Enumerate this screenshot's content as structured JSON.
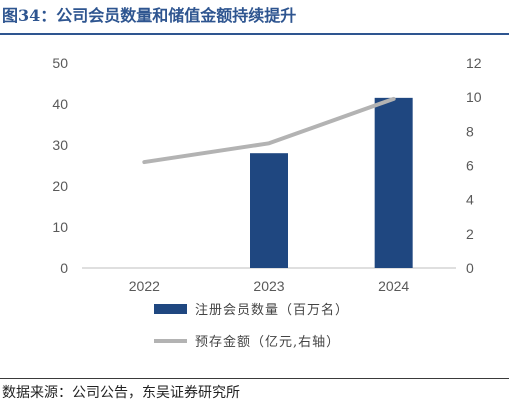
{
  "header": {
    "title": "图34：公司会员数量和储值金额持续提升"
  },
  "footer": {
    "source": "数据来源：公司公告，东吴证券研究所"
  },
  "chart_data": {
    "type": "bar",
    "categories": [
      "2022",
      "2023",
      "2024"
    ],
    "series": [
      {
        "name": "注册会员数量（百万名）",
        "type": "bar",
        "axis": "left",
        "color": "#1f4780",
        "values": [
          null,
          28,
          41.5
        ]
      },
      {
        "name": "预存金额（亿元,右轴）",
        "type": "line",
        "axis": "right",
        "color": "#b3b3b3",
        "values": [
          6.2,
          7.3,
          9.9
        ]
      }
    ],
    "y_left": {
      "min": 0,
      "max": 50,
      "ticks": [
        "0",
        "10",
        "20",
        "30",
        "40",
        "50"
      ]
    },
    "y_right": {
      "min": 0,
      "max": 12,
      "ticks": [
        "0",
        "2",
        "4",
        "6",
        "8",
        "10",
        "12"
      ]
    },
    "grid": false,
    "legend_position": "bottom"
  }
}
